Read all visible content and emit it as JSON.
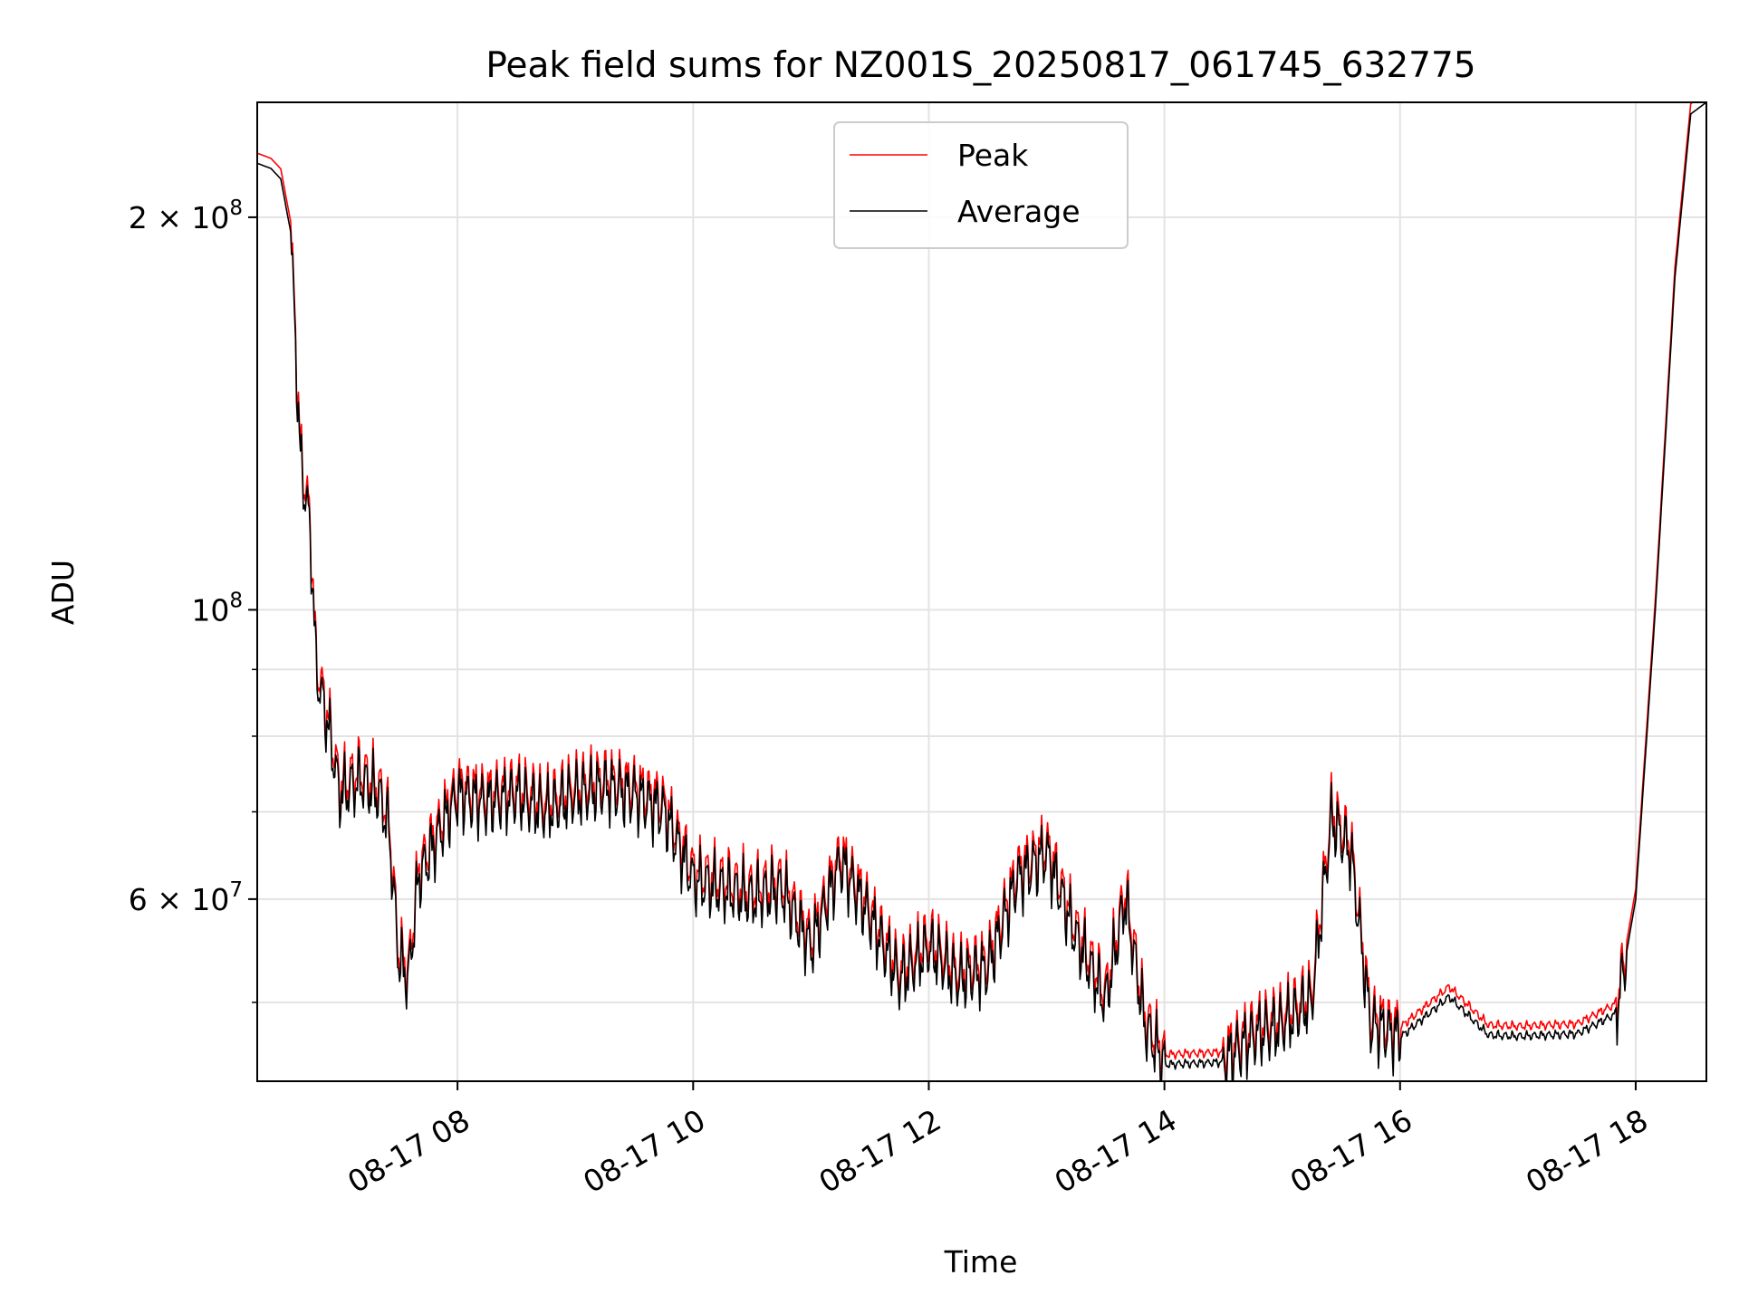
{
  "chart_data": {
    "type": "line",
    "title": "Peak field sums for NZ001S_20250817_061745_632775",
    "xlabel": "Time",
    "ylabel": "ADU",
    "yscale": "log",
    "ylim": [
      43500000,
      245000000
    ],
    "xlim": [
      "08-17 06:18",
      "08-17 18:36"
    ],
    "x_ticks": [
      {
        "x": "08-17 08:00",
        "label": "08-17 08"
      },
      {
        "x": "08-17 10:00",
        "label": "08-17 10"
      },
      {
        "x": "08-17 12:00",
        "label": "08-17 12"
      },
      {
        "x": "08-17 14:00",
        "label": "08-17 14"
      },
      {
        "x": "08-17 16:00",
        "label": "08-17 16"
      },
      {
        "x": "08-17 18:00",
        "label": "08-17 18"
      }
    ],
    "y_ticks": [
      {
        "y": 60000000,
        "base": "6 × 10",
        "exp": "7"
      },
      {
        "y": 100000000,
        "base": "10",
        "exp": "8"
      },
      {
        "y": 200000000,
        "base": "2 × 10",
        "exp": "8"
      }
    ],
    "y_minor_ticks": [
      50000000,
      70000000,
      80000000,
      90000000,
      300000000
    ],
    "grid": true,
    "legend_position": "top-center",
    "series": [
      {
        "name": "Peak",
        "color": "#ff0000",
        "offset_factor": 1.018
      },
      {
        "name": "Average",
        "color": "#000000",
        "offset_factor": 1.0
      }
    ],
    "anchors": [
      [
        "08-17 06:18",
        220000000
      ],
      [
        "08-17 06:25",
        218000000
      ],
      [
        "08-17 06:30",
        214000000
      ],
      [
        "08-17 06:35",
        195000000
      ],
      [
        "08-17 06:40",
        130000000
      ],
      [
        "08-17 06:45",
        115000000
      ],
      [
        "08-17 06:48",
        90000000
      ],
      [
        "08-17 06:55",
        80000000
      ],
      [
        "08-17 07:00",
        72000000
      ],
      [
        "08-17 07:10",
        74000000
      ],
      [
        "08-17 07:20",
        72000000
      ],
      [
        "08-17 07:25",
        68000000
      ],
      [
        "08-17 07:30",
        54000000
      ],
      [
        "08-17 07:35",
        52000000
      ],
      [
        "08-17 07:40",
        62000000
      ],
      [
        "08-17 07:50",
        67000000
      ],
      [
        "08-17 08:00",
        72000000
      ],
      [
        "08-17 08:15",
        71000000
      ],
      [
        "08-17 08:30",
        72000000
      ],
      [
        "08-17 08:45",
        70000000
      ],
      [
        "08-17 09:00",
        72000000
      ],
      [
        "08-17 09:15",
        73000000
      ],
      [
        "08-17 09:30",
        72000000
      ],
      [
        "08-17 09:45",
        70000000
      ],
      [
        "08-17 10:00",
        62000000
      ],
      [
        "08-17 10:15",
        61000000
      ],
      [
        "08-17 10:30",
        60000000
      ],
      [
        "08-17 10:45",
        61000000
      ],
      [
        "08-17 11:00",
        55000000
      ],
      [
        "08-17 11:15",
        64000000
      ],
      [
        "08-17 11:30",
        58000000
      ],
      [
        "08-17 11:45",
        52000000
      ],
      [
        "08-17 12:00",
        55000000
      ],
      [
        "08-17 12:15",
        52000000
      ],
      [
        "08-17 12:30",
        53000000
      ],
      [
        "08-17 12:45",
        62000000
      ],
      [
        "08-17 13:00",
        65000000
      ],
      [
        "08-17 13:15",
        56000000
      ],
      [
        "08-17 13:30",
        50000000
      ],
      [
        "08-17 13:40",
        60000000
      ],
      [
        "08-17 13:50",
        48000000
      ],
      [
        "08-17 14:00",
        44800000
      ],
      [
        "08-17 14:30",
        45000000
      ],
      [
        "08-17 14:45",
        47000000
      ],
      [
        "08-17 15:00",
        48000000
      ],
      [
        "08-17 15:15",
        50000000
      ],
      [
        "08-17 15:25",
        69000000
      ],
      [
        "08-17 15:35",
        65000000
      ],
      [
        "08-17 15:45",
        48000000
      ],
      [
        "08-17 16:00",
        47000000
      ],
      [
        "08-17 16:25",
        50500000
      ],
      [
        "08-17 16:45",
        47200000
      ],
      [
        "08-17 17:00",
        47100000
      ],
      [
        "08-17 17:30",
        47300000
      ],
      [
        "08-17 17:50",
        49000000
      ],
      [
        "08-17 18:00",
        60000000
      ],
      [
        "08-17 18:10",
        100000000
      ],
      [
        "08-17 18:20",
        180000000
      ],
      [
        "08-17 18:28",
        240000000
      ],
      [
        "08-17 18:36",
        245000000
      ]
    ]
  }
}
